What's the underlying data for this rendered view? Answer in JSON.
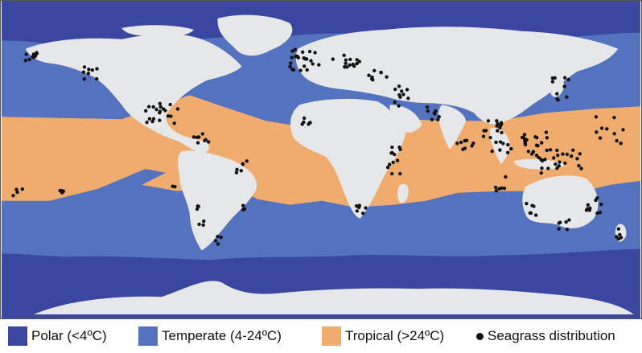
{
  "legend": {
    "polar": {
      "label": "Polar (<4ºC)",
      "color": "#3a469f"
    },
    "temperate": {
      "label": "Temperate (4-24ºC)",
      "color": "#5472bd"
    },
    "tropical": {
      "label": "Tropical (>24ºC)",
      "color": "#f0ac6e"
    },
    "seagrass": {
      "label": "Seagrass distribution",
      "color": "#111111"
    }
  },
  "colors": {
    "land": "#e6e7e9",
    "polar": "#3a469f",
    "temperate": "#5472bd",
    "tropical": "#f0ac6e",
    "points": "#111111"
  }
}
